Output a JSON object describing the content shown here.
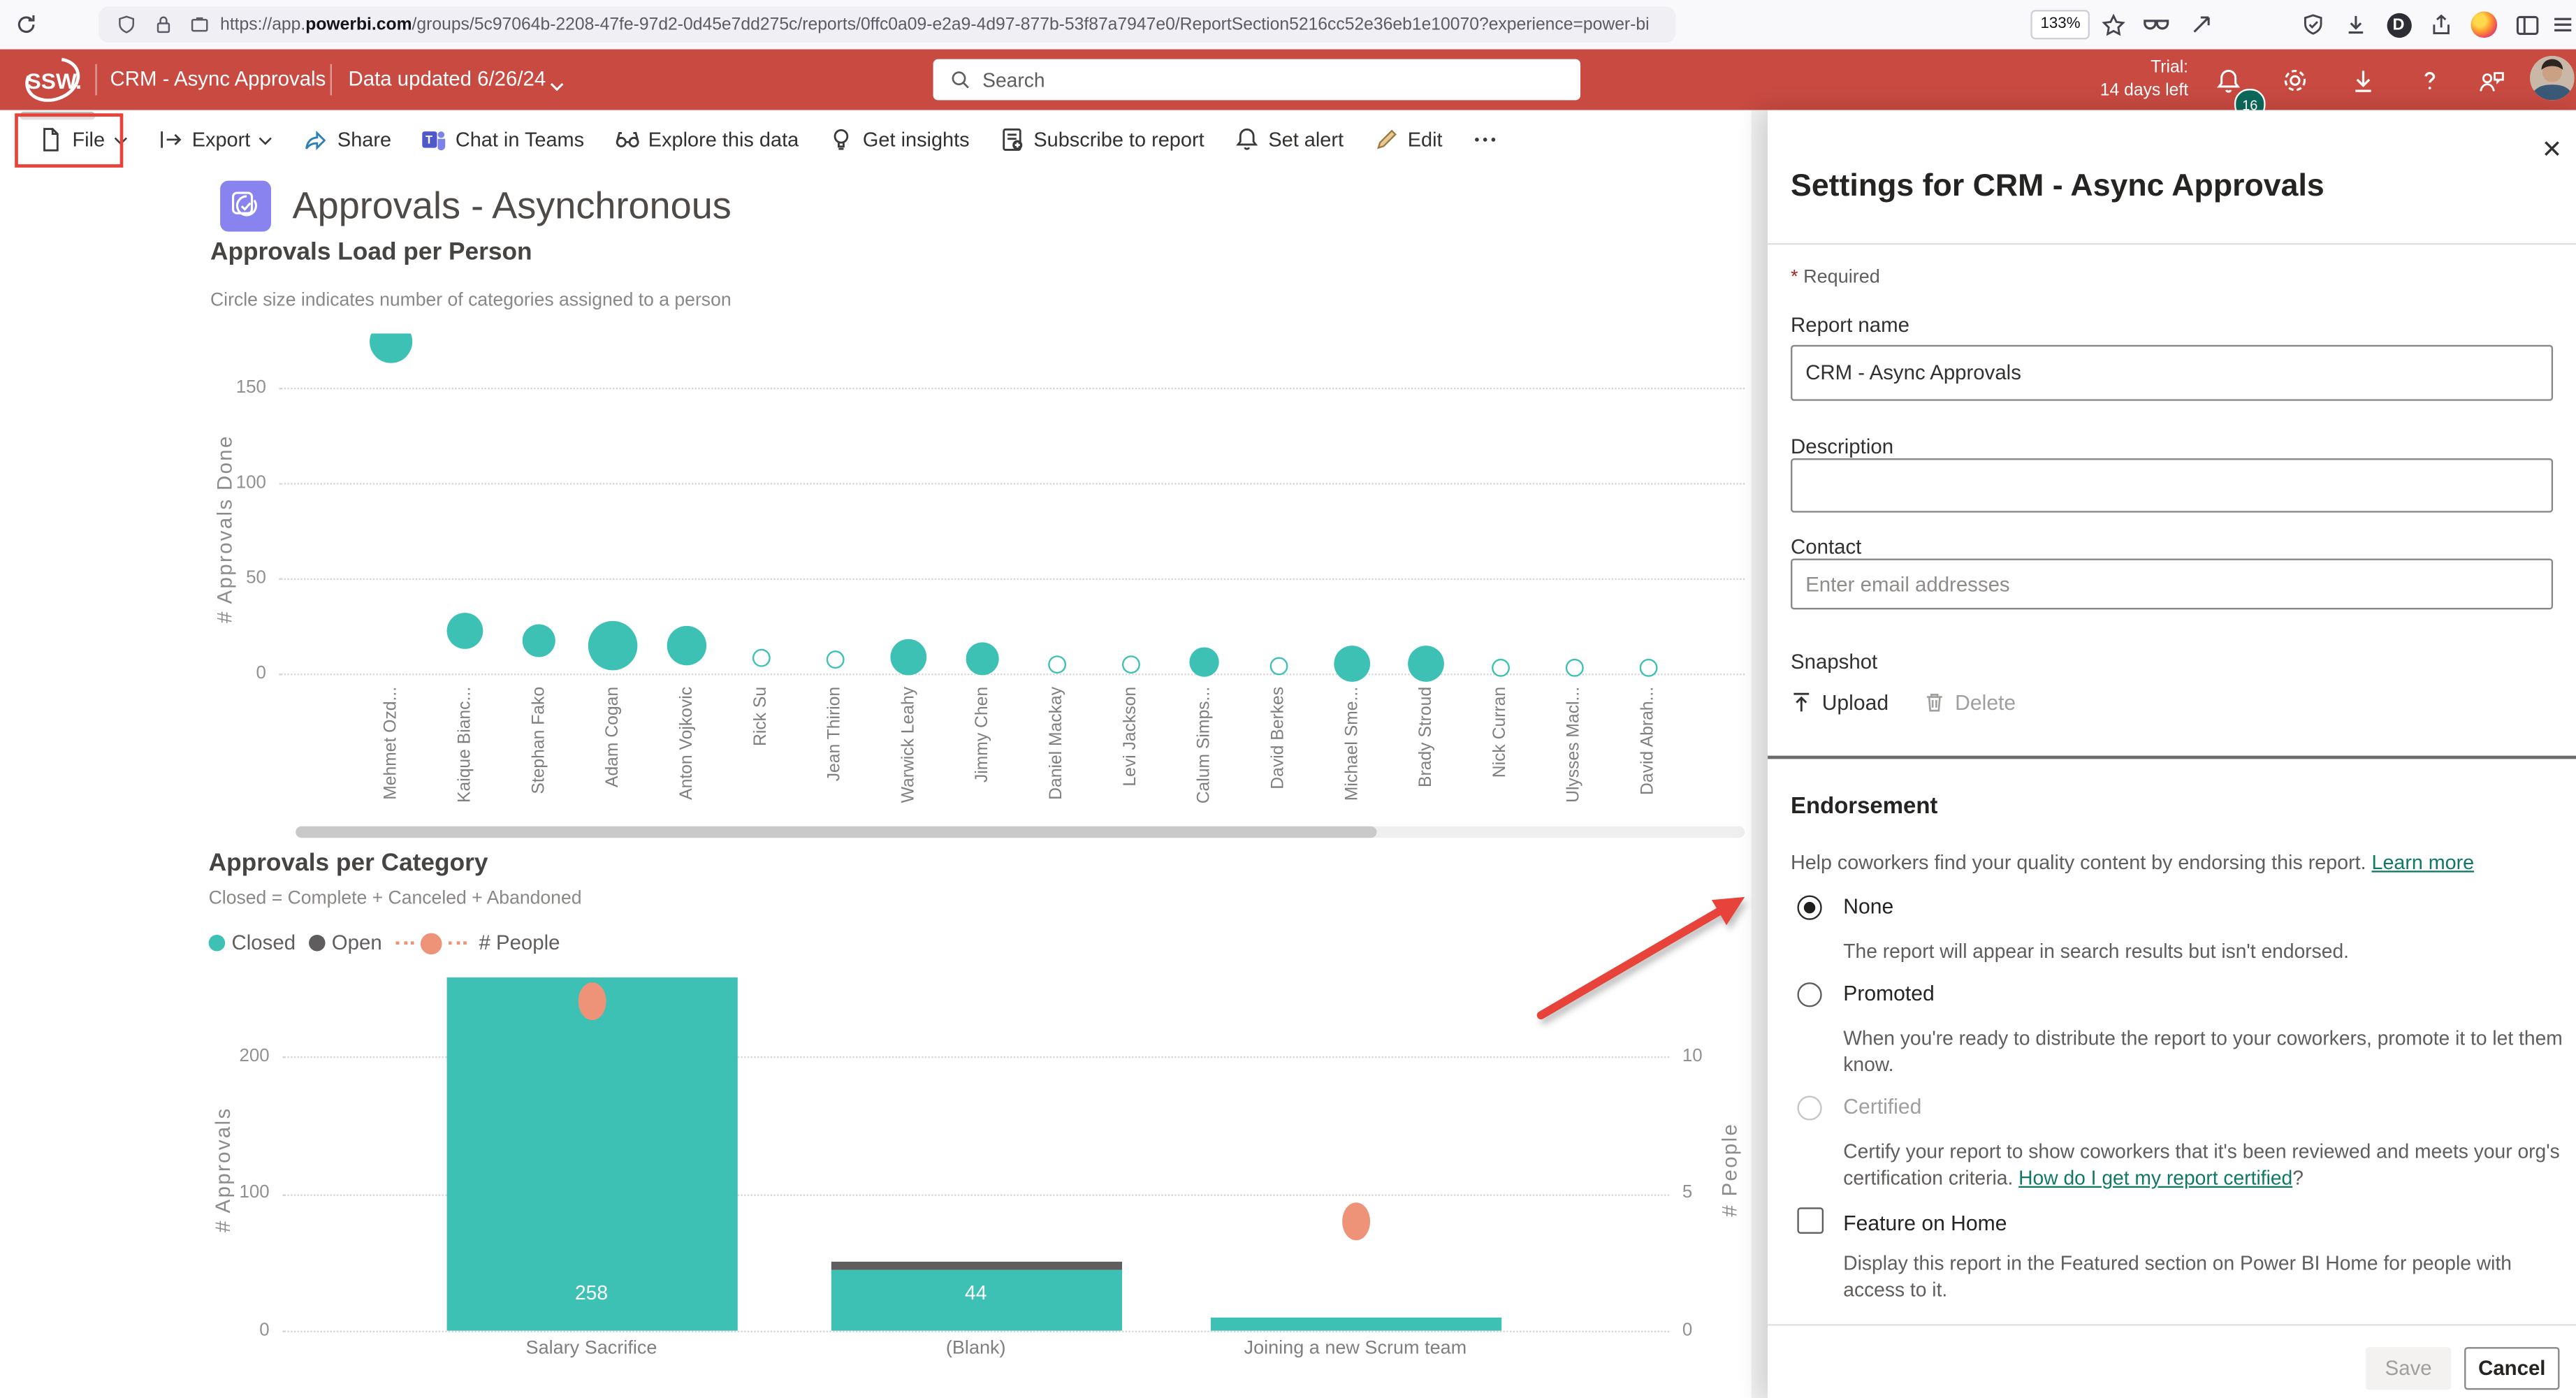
{
  "browser": {
    "url_prefix": "https://app.",
    "url_domain": "powerbi.com",
    "url_path": "/groups/5c97064b-2208-47fe-97d2-0d45e7dd275c/reports/0ffc0a09-e2a9-4d97-877b-53f87a7947e0/ReportSection5216cc52e36eb1e10070?experience=power-bi",
    "zoom_level": "133%"
  },
  "header": {
    "logo_text": "SSW.",
    "report_title": "CRM - Async Approvals",
    "data_updated": "Data updated 6/26/24",
    "search_placeholder": "Search",
    "trial_label": "Trial:",
    "trial_remaining": "14 days left",
    "notification_count": "16",
    "brand_color": "#c84a41"
  },
  "toolbar": {
    "items": [
      {
        "label": "File",
        "icon": "file-icon",
        "chevron": true,
        "annotated": true
      },
      {
        "label": "Export",
        "icon": "export-icon",
        "chevron": true
      },
      {
        "label": "Share",
        "icon": "share-icon"
      },
      {
        "label": "Chat in Teams",
        "icon": "teams-icon"
      },
      {
        "label": "Explore this data",
        "icon": "explore-icon"
      },
      {
        "label": "Get insights",
        "icon": "insights-icon"
      },
      {
        "label": "Subscribe to report",
        "icon": "subscribe-icon"
      },
      {
        "label": "Set alert",
        "icon": "alert-icon"
      },
      {
        "label": "Edit",
        "icon": "edit-icon"
      },
      {
        "label": "",
        "icon": "more-icon"
      }
    ]
  },
  "report": {
    "page_title": "Approvals - Asynchronous"
  },
  "chart_data": [
    {
      "type": "scatter",
      "title": "Approvals Load per Person",
      "subtitle": "Circle size indicates number of categories assigned to a person",
      "ylabel": "# Approvals Done",
      "yticks": [
        0,
        50,
        100,
        150
      ],
      "ylim": [
        0,
        180
      ],
      "grid": true,
      "point_color": "#3cc1b4",
      "points": [
        {
          "name": "Mehmet Ozd...",
          "value": 174,
          "r": 13,
          "filled": true
        },
        {
          "name": "Kaique Bianc...",
          "value": 22,
          "r": 11,
          "filled": true
        },
        {
          "name": "Stephan Fako",
          "value": 17,
          "r": 10,
          "filled": true
        },
        {
          "name": "Adam Cogan",
          "value": 15,
          "r": 15,
          "filled": true
        },
        {
          "name": "Anton Vojkovic",
          "value": 15,
          "r": 12,
          "filled": true
        },
        {
          "name": "Rick Su",
          "value": 8,
          "r": 5.5,
          "filled": false
        },
        {
          "name": "Jean Thirion",
          "value": 7,
          "r": 5.5,
          "filled": false
        },
        {
          "name": "Warwick Leahy",
          "value": 9,
          "r": 11,
          "filled": true
        },
        {
          "name": "Jimmy Chen",
          "value": 8,
          "r": 10,
          "filled": true
        },
        {
          "name": "Daniel Mackay",
          "value": 5,
          "r": 5.5,
          "filled": false
        },
        {
          "name": "Levi Jackson",
          "value": 5,
          "r": 5.5,
          "filled": false
        },
        {
          "name": "Calum Simps...",
          "value": 6,
          "r": 9,
          "filled": true
        },
        {
          "name": "David Berkes",
          "value": 4,
          "r": 5.5,
          "filled": false
        },
        {
          "name": "Michael Sme...",
          "value": 5,
          "r": 11,
          "filled": true
        },
        {
          "name": "Brady Stroud",
          "value": 5,
          "r": 11,
          "filled": true
        },
        {
          "name": "Nick Curran",
          "value": 3,
          "r": 5.5,
          "filled": false
        },
        {
          "name": "Ulysses Macl...",
          "value": 3,
          "r": 5.5,
          "filled": false
        },
        {
          "name": "David Abrah...",
          "value": 3,
          "r": 5.5,
          "filled": false
        }
      ]
    },
    {
      "type": "bar",
      "title": "Approvals per Category",
      "subtitle": "Closed = Complete + Canceled + Abandoned",
      "legend": [
        "Closed",
        "Open",
        "# People"
      ],
      "categories": [
        "Salary Sacrifice",
        "(Blank)",
        "Joining a new Scrum team"
      ],
      "series": [
        {
          "name": "Closed",
          "color": "#3cc1b4",
          "values": [
            258,
            44,
            9
          ],
          "labels": [
            "258",
            "44",
            ""
          ]
        },
        {
          "name": "Open",
          "color": "#5f5d5d",
          "values": [
            0,
            6,
            0
          ]
        },
        {
          "name": "# People",
          "color": "#ee9377",
          "axis": "right",
          "values": [
            12,
            null,
            4
          ]
        }
      ],
      "ylabel_left": "# Approvals",
      "ylabel_right": "# People",
      "yticks_left": [
        0,
        100,
        200
      ],
      "yticks_right": [
        0,
        5,
        10
      ],
      "ylim_left": [
        0,
        260
      ],
      "ylim_right": [
        0,
        12.6
      ]
    }
  ],
  "settings_panel": {
    "title": "Settings for CRM - Async Approvals",
    "required_asterisk": "*",
    "required_note": "Required",
    "report_name_label": "Report name",
    "report_name_value": "CRM - Async Approvals",
    "description_label": "Description",
    "contact_label": "Contact",
    "contact_placeholder": "Enter email addresses",
    "snapshot_label": "Snapshot",
    "upload_label": "Upload",
    "delete_label": "Delete",
    "endorsement": {
      "heading": "Endorsement",
      "help_text": "Help coworkers find your quality content by endorsing this report.",
      "learn_more": "Learn more",
      "options": [
        {
          "label": "None",
          "selected": true,
          "disabled": false,
          "description": "The report will appear in search results but isn't endorsed."
        },
        {
          "label": "Promoted",
          "selected": false,
          "disabled": false,
          "description": "When you're ready to distribute the report to your coworkers, promote it to let them know."
        },
        {
          "label": "Certified",
          "selected": false,
          "disabled": true,
          "description": "Certify your report to show coworkers that it's been reviewed and meets your org's certification criteria. ",
          "link": "How do I get my report certified",
          "link_suffix": "?"
        }
      ]
    },
    "feature_checkbox_label": "Feature on Home",
    "feature_description": "Display this report in the Featured section on Power BI Home for people with access to it.",
    "save_label": "Save",
    "cancel_label": "Cancel"
  },
  "annotations": {
    "arrow_color": "#e8433a",
    "box_color": "#e8433a"
  }
}
